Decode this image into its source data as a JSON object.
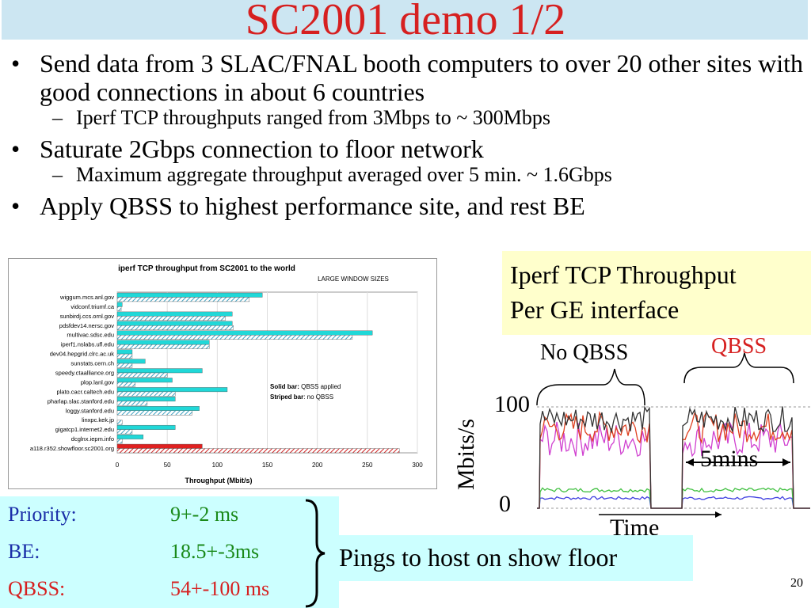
{
  "slide": {
    "title": "SC2001 demo 1/2",
    "bullets": [
      {
        "text": "Send data from 3 SLAC/FNAL booth computers to over 20 other sites with good connections in about 6 countries",
        "level": 1
      },
      {
        "text": "Iperf TCP throughputs ranged from 3Mbps to ~ 300Mbps",
        "level": 2
      },
      {
        "text": "Saturate 2Gbps connection to floor network",
        "level": 1
      },
      {
        "text": "Maximum aggregate throughput averaged over 5 min. ~ 1.6Gbps",
        "level": 2
      },
      {
        "text": "Apply QBSS to highest performance site, and rest BE",
        "level": 1
      }
    ],
    "bullet_marker": "•",
    "sub_marker": "–",
    "page_number": "20"
  },
  "iperf_box": {
    "line1": "Iperf TCP Throughput",
    "line2": "Per GE interface"
  },
  "pings": {
    "rows": [
      {
        "label": "Priority:",
        "value": "9+-2 ms"
      },
      {
        "label": "BE:",
        "value": "18.5+-3ms"
      },
      {
        "label": "QBSS:",
        "value": "54+-100 ms"
      }
    ],
    "caption": "Pings to host on show floor"
  },
  "right_plot": {
    "no_qbss": "No QBSS",
    "qbss": "QBSS",
    "ylabel": "Mbits/s",
    "tick_100": "100",
    "tick_0": "0",
    "five_mins": "5mins",
    "time": "Time"
  },
  "colors": {
    "title": "#d62020",
    "ping_label": "#1a2ea8",
    "ping_value": "#1a8a1a",
    "qbss": "#d62020"
  },
  "chart_data": {
    "type": "bar",
    "title": "iperf TCP throughput  from SC2001 to the world",
    "subtitle": "LARGE WINDOW SIZES",
    "xlabel": "Throughput (Mbit/s)",
    "xlim": [
      0,
      300
    ],
    "xticks": [
      0,
      50,
      100,
      150,
      200,
      250,
      300
    ],
    "legend": {
      "solid_label": "Solid bar:",
      "solid_text": "QBSS applied",
      "striped_label": "Striped bar",
      "striped_text": ": no QBSS"
    },
    "categories": [
      "wiggum.mcs.anl.gov",
      "vidconf.triumf.ca",
      "sunbirdj.ccs.ornl.gov",
      "pdsfdev14.nersc.gov",
      "multivac.sdsc.edu",
      "iperf1.nslabs.ufl.edu",
      "dev04.hepgrid.clrc.ac.uk",
      "sunstats.cern.ch",
      "speedy.ctaalliance.org",
      "plop.lanl.gov",
      "plato.cacr.caltech.edu",
      "pharlap.slac.stanford.edu",
      "loggy.stanford.edu",
      "linxpc.kek.jp",
      "gigatcp1.internet2.edu",
      "dcglnx.iepm.info",
      "a118.r352.showfloor.sc2001.org"
    ],
    "series": [
      {
        "name": "Solid bar",
        "values": [
          145,
          5,
          115,
          115,
          255,
          92,
          15,
          28,
          85,
          55,
          110,
          58,
          82,
          0,
          58,
          26,
          85
        ]
      },
      {
        "name": "Striped bar",
        "values": [
          132,
          4,
          108,
          116,
          235,
          92,
          15,
          15,
          50,
          18,
          58,
          30,
          75,
          5,
          15,
          5,
          282
        ]
      }
    ]
  }
}
